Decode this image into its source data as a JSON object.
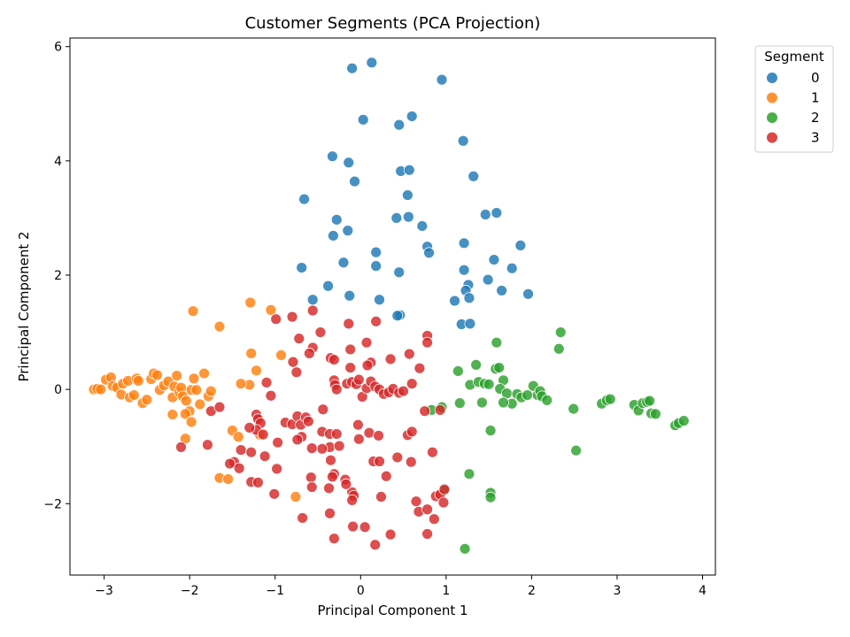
{
  "chart_data": {
    "type": "scatter",
    "title": "Customer Segments (PCA Projection)",
    "xlabel": "Principal Component 1",
    "ylabel": "Principal Component 2",
    "xlim": [
      -3.4,
      4.15
    ],
    "ylim": [
      -3.25,
      6.15
    ],
    "xticks": [
      -3,
      -2,
      -1,
      0,
      1,
      2,
      3,
      4
    ],
    "yticks": [
      -2,
      0,
      2,
      4,
      6
    ],
    "grid": false,
    "legend": {
      "title": "Segment",
      "placement": "outside top-right"
    },
    "series": [
      {
        "name": "0",
        "color": "#1f77b4",
        "points": [
          [
            -0.1,
            5.62
          ],
          [
            0.13,
            5.72
          ],
          [
            0.95,
            5.42
          ],
          [
            0.03,
            4.72
          ],
          [
            0.6,
            4.78
          ],
          [
            0.45,
            4.63
          ],
          [
            1.2,
            4.35
          ],
          [
            -0.33,
            4.08
          ],
          [
            -0.14,
            3.97
          ],
          [
            0.47,
            3.82
          ],
          [
            0.57,
            3.84
          ],
          [
            1.32,
            3.73
          ],
          [
            -0.07,
            3.64
          ],
          [
            -0.66,
            3.33
          ],
          [
            0.55,
            3.4
          ],
          [
            -0.28,
            2.97
          ],
          [
            0.42,
            3.0
          ],
          [
            0.56,
            3.02
          ],
          [
            0.72,
            2.86
          ],
          [
            1.46,
            3.06
          ],
          [
            1.59,
            3.09
          ],
          [
            -0.32,
            2.69
          ],
          [
            -0.15,
            2.78
          ],
          [
            0.78,
            2.5
          ],
          [
            1.21,
            2.56
          ],
          [
            1.87,
            2.52
          ],
          [
            0.18,
            2.4
          ],
          [
            0.8,
            2.39
          ],
          [
            -0.2,
            2.22
          ],
          [
            -0.69,
            2.13
          ],
          [
            0.18,
            2.16
          ],
          [
            1.56,
            2.27
          ],
          [
            1.77,
            2.12
          ],
          [
            0.45,
            2.05
          ],
          [
            1.21,
            2.09
          ],
          [
            1.49,
            1.92
          ],
          [
            -0.38,
            1.81
          ],
          [
            1.26,
            1.83
          ],
          [
            -0.56,
            1.57
          ],
          [
            -0.13,
            1.64
          ],
          [
            0.22,
            1.57
          ],
          [
            1.23,
            1.73
          ],
          [
            1.65,
            1.73
          ],
          [
            1.96,
            1.67
          ],
          [
            1.1,
            1.55
          ],
          [
            1.27,
            1.6
          ],
          [
            0.46,
            1.3
          ],
          [
            0.43,
            1.29
          ],
          [
            1.18,
            1.14
          ],
          [
            1.28,
            1.15
          ]
        ]
      },
      {
        "name": "1",
        "color": "#ff7f0e",
        "points": [
          [
            -1.29,
            1.52
          ],
          [
            -1.96,
            1.37
          ],
          [
            -1.05,
            1.39
          ],
          [
            -1.65,
            1.1
          ],
          [
            -0.93,
            0.6
          ],
          [
            -1.28,
            0.63
          ],
          [
            -3.12,
            0.0
          ],
          [
            -3.08,
            0.01
          ],
          [
            -3.04,
            0.0
          ],
          [
            -2.98,
            0.17
          ],
          [
            -2.92,
            0.21
          ],
          [
            -2.9,
            0.06
          ],
          [
            -2.85,
            0.03
          ],
          [
            -2.8,
            -0.09
          ],
          [
            -2.78,
            0.1
          ],
          [
            -2.72,
            0.15
          ],
          [
            -2.7,
            -0.14
          ],
          [
            -2.65,
            -0.1
          ],
          [
            -2.62,
            0.19
          ],
          [
            -2.6,
            0.15
          ],
          [
            -2.55,
            -0.24
          ],
          [
            -2.5,
            -0.18
          ],
          [
            -2.45,
            0.18
          ],
          [
            -2.42,
            0.28
          ],
          [
            -2.38,
            0.25
          ],
          [
            -2.35,
            -0.01
          ],
          [
            -2.3,
            0.07
          ],
          [
            -2.25,
            0.14
          ],
          [
            -2.2,
            -0.14
          ],
          [
            -2.18,
            0.05
          ],
          [
            -2.15,
            0.24
          ],
          [
            -2.12,
            -0.05
          ],
          [
            -2.1,
            0.03
          ],
          [
            -2.08,
            -0.12
          ],
          [
            -2.04,
            -0.2
          ],
          [
            -2.0,
            -0.38
          ],
          [
            -1.98,
            -0.01
          ],
          [
            -1.95,
            0.19
          ],
          [
            -1.92,
            -0.01
          ],
          [
            -1.88,
            -0.26
          ],
          [
            -1.83,
            0.28
          ],
          [
            -1.78,
            -0.12
          ],
          [
            -1.75,
            -0.03
          ],
          [
            -2.2,
            -0.44
          ],
          [
            -2.05,
            -0.43
          ],
          [
            -1.98,
            -0.57
          ],
          [
            -2.05,
            -0.86
          ],
          [
            -1.5,
            -0.72
          ],
          [
            -1.43,
            -0.83
          ],
          [
            -1.65,
            -1.55
          ],
          [
            -1.55,
            -1.57
          ],
          [
            -0.76,
            -1.88
          ],
          [
            -1.3,
            0.08
          ],
          [
            -1.22,
            0.33
          ],
          [
            -1.18,
            -0.79
          ],
          [
            -1.4,
            0.1
          ]
        ]
      },
      {
        "name": "2",
        "color": "#2ca02c",
        "points": [
          [
            2.34,
            1.0
          ],
          [
            2.32,
            0.71
          ],
          [
            1.59,
            0.82
          ],
          [
            1.35,
            0.43
          ],
          [
            1.14,
            0.32
          ],
          [
            1.58,
            0.36
          ],
          [
            1.62,
            0.38
          ],
          [
            1.28,
            0.08
          ],
          [
            1.38,
            0.13
          ],
          [
            1.45,
            0.1
          ],
          [
            1.5,
            0.09
          ],
          [
            1.67,
            0.16
          ],
          [
            1.63,
            0.01
          ],
          [
            1.71,
            -0.07
          ],
          [
            1.77,
            -0.25
          ],
          [
            1.83,
            -0.08
          ],
          [
            1.88,
            -0.14
          ],
          [
            1.95,
            -0.1
          ],
          [
            2.02,
            0.06
          ],
          [
            2.07,
            -0.1
          ],
          [
            2.1,
            -0.03
          ],
          [
            2.12,
            -0.12
          ],
          [
            2.18,
            -0.19
          ],
          [
            1.67,
            -0.23
          ],
          [
            1.42,
            -0.23
          ],
          [
            1.16,
            -0.24
          ],
          [
            0.83,
            -0.36
          ],
          [
            0.95,
            -0.31
          ],
          [
            2.49,
            -0.34
          ],
          [
            2.82,
            -0.25
          ],
          [
            2.88,
            -0.19
          ],
          [
            2.92,
            -0.17
          ],
          [
            3.2,
            -0.27
          ],
          [
            3.25,
            -0.37
          ],
          [
            3.3,
            -0.24
          ],
          [
            3.35,
            -0.22
          ],
          [
            3.38,
            -0.2
          ],
          [
            3.4,
            -0.42
          ],
          [
            3.45,
            -0.43
          ],
          [
            3.68,
            -0.63
          ],
          [
            3.72,
            -0.59
          ],
          [
            3.78,
            -0.55
          ],
          [
            1.52,
            -0.72
          ],
          [
            2.52,
            -1.07
          ],
          [
            1.27,
            -1.48
          ],
          [
            1.52,
            -1.81
          ],
          [
            1.52,
            -1.89
          ],
          [
            0.98,
            -1.77
          ],
          [
            1.22,
            -2.79
          ]
        ]
      },
      {
        "name": "3",
        "color": "#d62728",
        "points": [
          [
            -0.56,
            1.38
          ],
          [
            -0.8,
            1.27
          ],
          [
            -0.99,
            1.23
          ],
          [
            -0.47,
            1.0
          ],
          [
            -0.14,
            1.15
          ],
          [
            0.18,
            1.19
          ],
          [
            -0.72,
            0.89
          ],
          [
            -0.56,
            0.73
          ],
          [
            -0.12,
            0.7
          ],
          [
            0.07,
            0.82
          ],
          [
            0.78,
            0.94
          ],
          [
            0.78,
            0.82
          ],
          [
            -0.6,
            0.63
          ],
          [
            -0.35,
            0.55
          ],
          [
            -0.31,
            0.52
          ],
          [
            -0.79,
            0.48
          ],
          [
            -0.75,
            0.3
          ],
          [
            0.35,
            0.53
          ],
          [
            0.57,
            0.62
          ],
          [
            0.12,
            0.47
          ],
          [
            0.08,
            0.42
          ],
          [
            0.69,
            0.37
          ],
          [
            -0.12,
            0.38
          ],
          [
            -1.1,
            0.12
          ],
          [
            -0.31,
            0.16
          ],
          [
            -0.3,
            0.08
          ],
          [
            -0.28,
            0.0
          ],
          [
            -0.16,
            0.1
          ],
          [
            -0.1,
            0.13
          ],
          [
            -0.05,
            0.09
          ],
          [
            -0.02,
            0.17
          ],
          [
            0.02,
            -0.13
          ],
          [
            0.07,
            0.02
          ],
          [
            0.12,
            0.14
          ],
          [
            0.17,
            0.05
          ],
          [
            0.22,
            0.0
          ],
          [
            0.27,
            -0.08
          ],
          [
            0.33,
            -0.05
          ],
          [
            0.38,
            0.01
          ],
          [
            0.45,
            -0.06
          ],
          [
            0.5,
            -0.03
          ],
          [
            0.6,
            0.1
          ],
          [
            0.75,
            -0.38
          ],
          [
            0.93,
            -0.36
          ],
          [
            -1.05,
            -0.11
          ],
          [
            -1.75,
            -0.38
          ],
          [
            -1.65,
            -0.31
          ],
          [
            -1.22,
            -0.44
          ],
          [
            -1.2,
            -0.52
          ],
          [
            -1.17,
            -0.59
          ],
          [
            -1.22,
            -0.71
          ],
          [
            -1.3,
            -0.67
          ],
          [
            -1.14,
            -0.79
          ],
          [
            -0.97,
            -0.93
          ],
          [
            -0.88,
            -0.58
          ],
          [
            -0.8,
            -0.61
          ],
          [
            -0.74,
            -0.47
          ],
          [
            -0.7,
            -0.62
          ],
          [
            -0.64,
            -0.49
          ],
          [
            -0.61,
            -0.56
          ],
          [
            -0.45,
            -0.74
          ],
          [
            -0.36,
            -0.78
          ],
          [
            -0.28,
            -0.78
          ],
          [
            -0.44,
            -0.35
          ],
          [
            -0.03,
            -0.62
          ],
          [
            0.1,
            -0.76
          ],
          [
            0.21,
            -0.81
          ],
          [
            0.55,
            -0.8
          ],
          [
            0.6,
            -0.74
          ],
          [
            -0.69,
            -0.83
          ],
          [
            -0.74,
            -0.88
          ],
          [
            -0.36,
            -1.01
          ],
          [
            -0.45,
            -1.04
          ],
          [
            -0.57,
            -1.03
          ],
          [
            -0.25,
            -0.99
          ],
          [
            -0.02,
            -0.87
          ],
          [
            -1.12,
            -1.17
          ],
          [
            -1.4,
            -1.06
          ],
          [
            -1.28,
            -1.1
          ],
          [
            -0.35,
            -1.24
          ],
          [
            0.15,
            -1.26
          ],
          [
            0.22,
            -1.26
          ],
          [
            0.43,
            -1.19
          ],
          [
            0.59,
            -1.27
          ],
          [
            0.84,
            -1.1
          ],
          [
            -0.98,
            -1.39
          ],
          [
            -1.48,
            -1.27
          ],
          [
            -1.42,
            -1.38
          ],
          [
            -1.28,
            -1.62
          ],
          [
            -1.2,
            -1.63
          ],
          [
            -0.58,
            -1.54
          ],
          [
            -0.31,
            -1.48
          ],
          [
            -0.33,
            -1.53
          ],
          [
            -0.18,
            -1.58
          ],
          [
            0.3,
            -1.52
          ],
          [
            -0.57,
            -1.71
          ],
          [
            -0.37,
            -1.73
          ],
          [
            -0.1,
            -1.8
          ],
          [
            -0.08,
            -1.86
          ],
          [
            -0.1,
            -1.94
          ],
          [
            -0.17,
            -1.66
          ],
          [
            0.24,
            -1.88
          ],
          [
            -1.01,
            -1.83
          ],
          [
            0.65,
            -1.96
          ],
          [
            0.68,
            -2.14
          ],
          [
            0.78,
            -2.1
          ],
          [
            0.88,
            -1.87
          ],
          [
            0.93,
            -1.84
          ],
          [
            0.98,
            -1.75
          ],
          [
            0.97,
            -1.98
          ],
          [
            0.86,
            -2.27
          ],
          [
            -0.68,
            -2.25
          ],
          [
            -0.36,
            -2.17
          ],
          [
            -0.09,
            -2.4
          ],
          [
            0.05,
            -2.41
          ],
          [
            0.35,
            -2.54
          ],
          [
            0.78,
            -2.53
          ],
          [
            0.17,
            -2.72
          ],
          [
            -0.31,
            -2.61
          ],
          [
            -2.1,
            -1.01
          ],
          [
            -1.79,
            -0.97
          ],
          [
            -1.53,
            -1.3
          ]
        ]
      }
    ]
  }
}
